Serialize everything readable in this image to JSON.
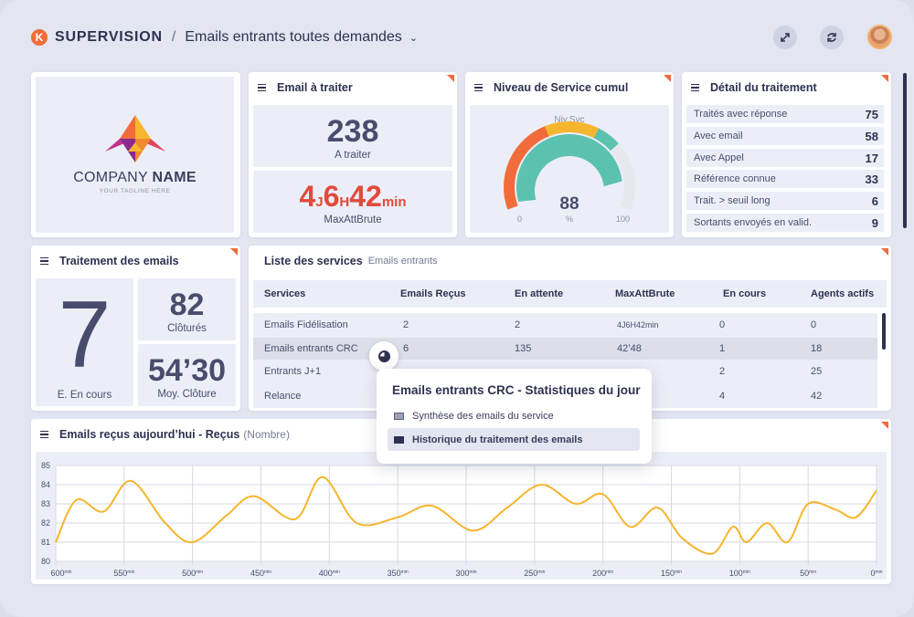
{
  "header": {
    "logo_letter": "K",
    "brand": "SUPERVISION",
    "separator": "/",
    "title": "Emails entrants toutes demandes",
    "dropdown_icon": "chevron-down-icon",
    "buttons": [
      "expand-icon",
      "refresh-icon"
    ],
    "avatar": "user-avatar"
  },
  "company": {
    "name_light": "COMPANY ",
    "name_bold": "NAME",
    "tagline": "YOUR TAGLINE HERE"
  },
  "email_a_traiter": {
    "title": "Email à traiter",
    "count": "238",
    "count_label": "A traiter",
    "wait_parts": [
      "4",
      "J",
      "6",
      "H",
      "42",
      "min"
    ],
    "wait_label": "MaxAttBrute"
  },
  "niveau_service": {
    "title": "Niveau de Service cumul",
    "gauge_label": "Niv.Svc",
    "value": 88,
    "unit": "%",
    "min": "0",
    "max": "100",
    "colors": {
      "low": "#f26b3a",
      "mid": "#f6b52e",
      "high": "#5cc2b0",
      "track": "#e6e7ef"
    }
  },
  "detail": {
    "title": "Détail du traitement",
    "rows": [
      {
        "label": "Traités avec réponse",
        "value": "75"
      },
      {
        "label": "Avec email",
        "value": "58"
      },
      {
        "label": "Avec Appel",
        "value": "17"
      },
      {
        "label": "Référence connue",
        "value": "33"
      },
      {
        "label": "Trait. > seuil long",
        "value": "6"
      },
      {
        "label": "Sortants envoyés en valid.",
        "value": "9"
      }
    ]
  },
  "traitement": {
    "title": "Traitement des emails",
    "en_cours": "7",
    "en_cours_label": "E. En cours",
    "clotures": "82",
    "clotures_label": "Clôturés",
    "moy": "54’30",
    "moy_label": "Moy. Clôture"
  },
  "services": {
    "title": "Liste des services",
    "subtitle": "Emails entrants",
    "columns": [
      "Services",
      "Emails Reçus",
      "En attente",
      "MaxAttBrute",
      "En cours",
      "Agents actifs"
    ],
    "rows": [
      [
        "Emails Fidélisation",
        "2",
        "2",
        "4J6H42min",
        "0",
        "0"
      ],
      [
        "Emails entrants CRC",
        "6",
        "135",
        "42’48",
        "1",
        "18"
      ],
      [
        "Entrants J+1",
        "",
        "",
        "",
        "2",
        "25"
      ],
      [
        "Relance",
        "",
        "",
        "",
        "4",
        "42"
      ]
    ]
  },
  "popover": {
    "title": "Emails entrants CRC - Statistiques du jour",
    "items": [
      "Synthèse des emails du service",
      "Historique du traitement des emails"
    ]
  },
  "chart_panel": {
    "title": "Emails reçus aujourd’hui - Reçus",
    "subtitle": "(Nombre)"
  },
  "chart_data": {
    "type": "line",
    "title": "Emails reçus aujourd’hui - Reçus (Nombre)",
    "xlabel": "",
    "ylabel": "",
    "x_ticks": [
      "600min",
      "550min",
      "500min",
      "450min",
      "400min",
      "350min",
      "300min",
      "250min",
      "200min",
      "150min",
      "100min",
      "50min",
      "0min"
    ],
    "ylim": [
      80,
      85
    ],
    "y_ticks": [
      80,
      81,
      82,
      83,
      84,
      85
    ],
    "grid": true,
    "series": [
      {
        "color": "#f6b52e",
        "x": [
          600,
          585,
          565,
          545,
          520,
          500,
          475,
          455,
          425,
          405,
          380,
          350,
          325,
          295,
          270,
          245,
          220,
          200,
          180,
          160,
          142,
          120,
          105,
          95,
          80,
          65,
          50,
          30,
          15,
          0
        ],
        "y": [
          81.0,
          83.2,
          82.6,
          84.2,
          82.0,
          81.0,
          82.4,
          83.4,
          82.2,
          84.4,
          82.0,
          82.3,
          82.9,
          81.6,
          82.8,
          84.0,
          83.0,
          83.5,
          81.8,
          82.8,
          81.2,
          80.4,
          81.8,
          81.0,
          82.0,
          81.0,
          83.0,
          82.7,
          82.3,
          83.7
        ]
      }
    ]
  }
}
